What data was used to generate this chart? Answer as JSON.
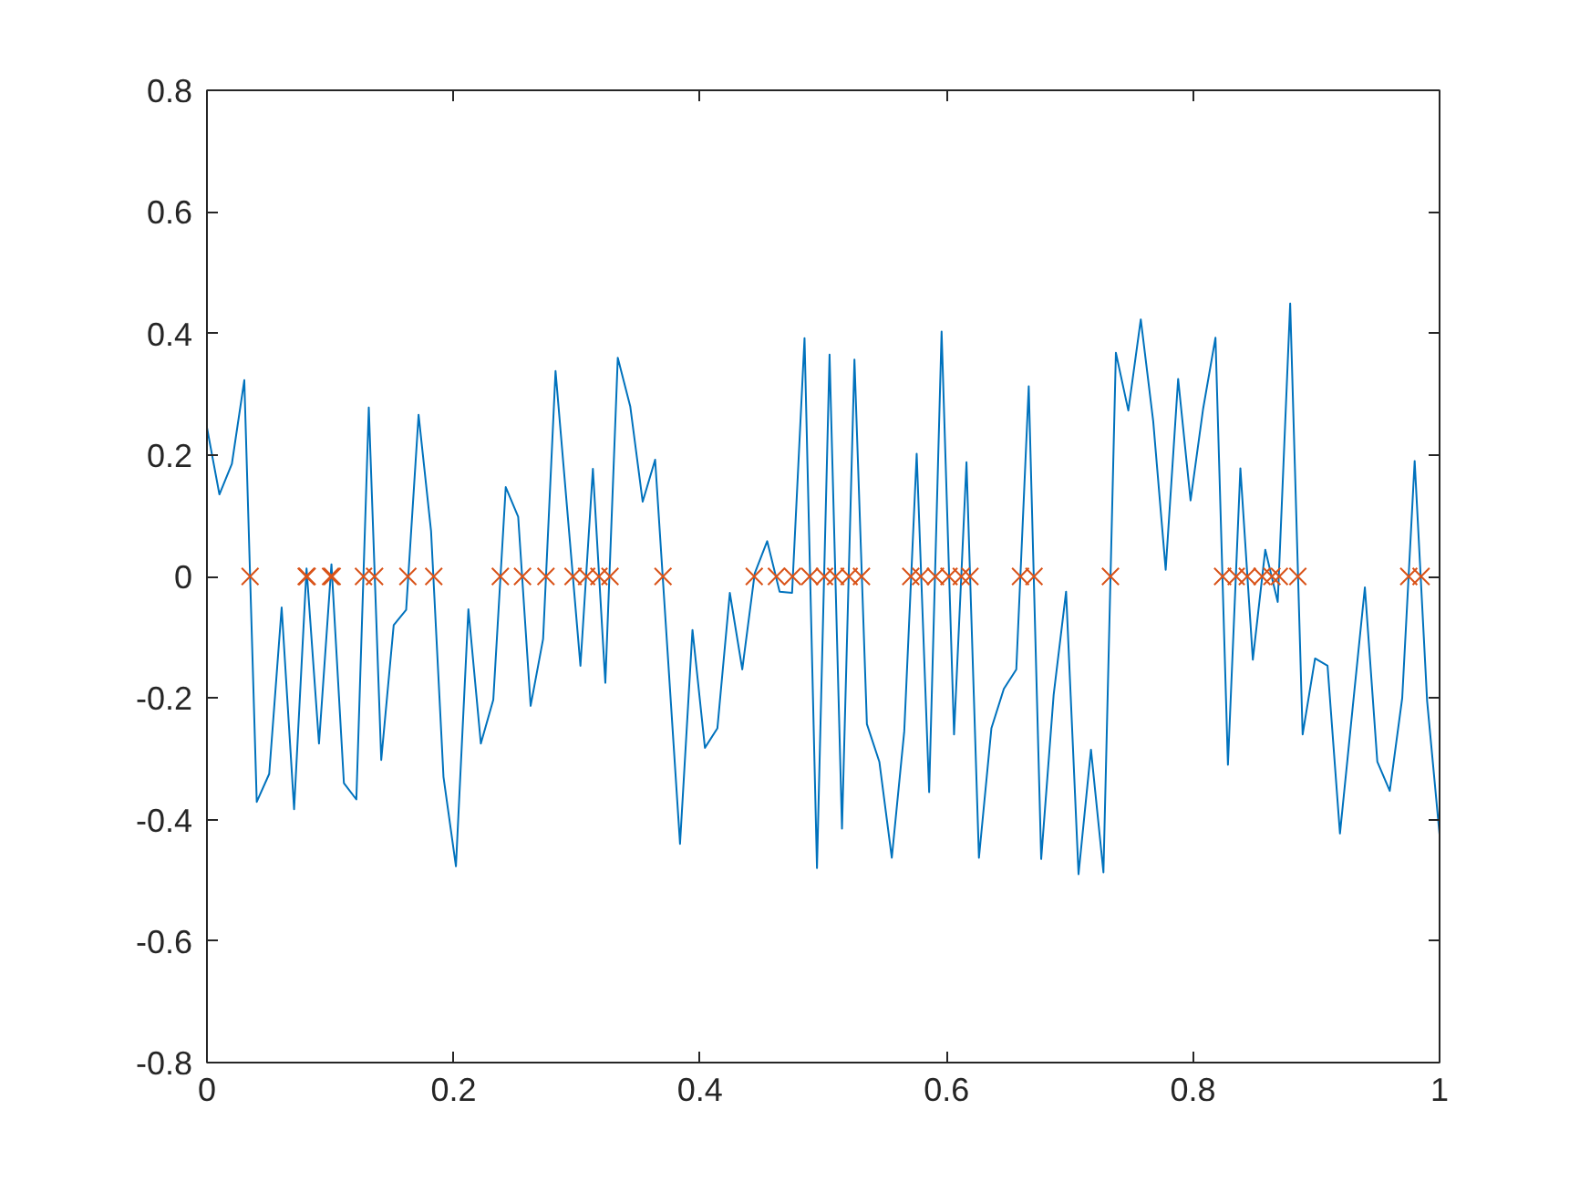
{
  "chart_data": {
    "type": "line",
    "xlim": [
      0,
      1
    ],
    "ylim": [
      -0.8,
      0.8
    ],
    "xticks": [
      0,
      0.2,
      0.4,
      0.6,
      0.8,
      1
    ],
    "yticks": [
      -0.8,
      -0.6,
      -0.4,
      -0.2,
      0,
      0.2,
      0.4,
      0.6,
      0.8
    ],
    "grid": false,
    "series": [
      {
        "type": "line",
        "color": "#0072bd",
        "marker": "none",
        "line_style": "solid",
        "x": [
          0.0,
          0.0101,
          0.0202,
          0.0303,
          0.0404,
          0.0505,
          0.0606,
          0.0707,
          0.0808,
          0.0909,
          0.101,
          0.1111,
          0.1212,
          0.1313,
          0.1414,
          0.1515,
          0.1616,
          0.1717,
          0.1818,
          0.1919,
          0.202,
          0.2121,
          0.2222,
          0.2323,
          0.2424,
          0.2525,
          0.2626,
          0.2727,
          0.2828,
          0.2929,
          0.303,
          0.3131,
          0.3232,
          0.3333,
          0.3434,
          0.3535,
          0.3636,
          0.3737,
          0.3838,
          0.3939,
          0.404,
          0.4141,
          0.4242,
          0.4343,
          0.4444,
          0.4545,
          0.4646,
          0.4747,
          0.4848,
          0.4949,
          0.5051,
          0.5152,
          0.5253,
          0.5354,
          0.5455,
          0.5556,
          0.5657,
          0.5758,
          0.5859,
          0.596,
          0.6061,
          0.6162,
          0.6263,
          0.6364,
          0.6465,
          0.6566,
          0.6667,
          0.6768,
          0.6869,
          0.697,
          0.7071,
          0.7172,
          0.7273,
          0.7374,
          0.7475,
          0.7576,
          0.7677,
          0.7778,
          0.7879,
          0.798,
          0.8081,
          0.8182,
          0.8283,
          0.8384,
          0.8485,
          0.8586,
          0.8687,
          0.8788,
          0.8889,
          0.899,
          0.9091,
          0.9192,
          0.9293,
          0.9394,
          0.9495,
          0.9596,
          0.9697,
          0.9798,
          0.9899,
          1.0
        ],
        "values": [
          0.245,
          0.135,
          0.185,
          0.323,
          -0.371,
          -0.325,
          -0.051,
          -0.383,
          0.013,
          -0.275,
          0.02,
          -0.34,
          -0.367,
          0.278,
          -0.302,
          -0.08,
          -0.055,
          0.266,
          0.075,
          -0.33,
          -0.477,
          -0.054,
          -0.275,
          -0.203,
          0.147,
          0.098,
          -0.213,
          -0.103,
          0.338,
          0.095,
          -0.147,
          0.177,
          -0.175,
          0.36,
          0.28,
          0.123,
          0.192,
          -0.124,
          -0.44,
          -0.088,
          -0.282,
          -0.25,
          -0.027,
          -0.153,
          0.005,
          0.058,
          -0.025,
          -0.027,
          0.392,
          -0.48,
          0.365,
          -0.415,
          0.357,
          -0.243,
          -0.305,
          -0.463,
          -0.255,
          0.202,
          -0.355,
          0.403,
          -0.26,
          0.188,
          -0.463,
          -0.25,
          -0.185,
          -0.153,
          0.313,
          -0.465,
          -0.195,
          -0.025,
          -0.49,
          -0.285,
          -0.487,
          0.368,
          0.273,
          0.423,
          0.255,
          0.011,
          0.325,
          0.125,
          0.275,
          0.393,
          -0.31,
          0.178,
          -0.137,
          0.044,
          -0.042,
          0.449,
          -0.26,
          -0.135,
          -0.147,
          -0.423,
          -0.22,
          -0.018,
          -0.305,
          -0.353,
          -0.2,
          0.19,
          -0.205,
          -0.425
        ]
      },
      {
        "type": "scatter",
        "color": "#d95319",
        "marker": "cross",
        "x": [
          0.035,
          0.0805,
          0.0813,
          0.1003,
          0.1016,
          0.127,
          0.136,
          0.163,
          0.184,
          0.238,
          0.256,
          0.275,
          0.297,
          0.308,
          0.318,
          0.327,
          0.37,
          0.444,
          0.462,
          0.475,
          0.489,
          0.501,
          0.51,
          0.521,
          0.531,
          0.571,
          0.579,
          0.591,
          0.602,
          0.612,
          0.619,
          0.66,
          0.671,
          0.733,
          0.824,
          0.835,
          0.844,
          0.856,
          0.864,
          0.87,
          0.885,
          0.975,
          0.985
        ],
        "values": [
          0,
          0,
          0,
          0,
          0,
          0,
          0,
          0,
          0,
          0,
          0,
          0,
          0,
          0,
          0,
          0,
          0,
          0,
          0,
          0,
          0,
          0,
          0,
          0,
          0,
          0,
          0,
          0,
          0,
          0,
          0,
          0,
          0,
          0,
          0,
          0,
          0,
          0,
          0,
          0,
          0,
          0,
          0
        ]
      }
    ]
  }
}
